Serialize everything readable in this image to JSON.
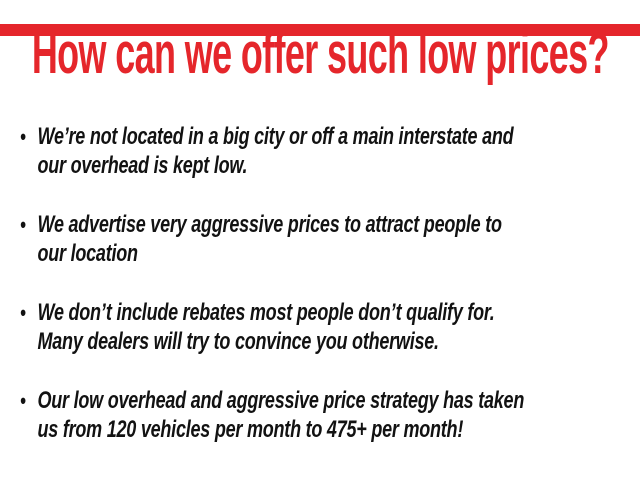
{
  "slide": {
    "title": "How can we offer such low prices?",
    "accent_color": "#e5262b",
    "text_color": "#121212",
    "bullet_char": "•",
    "bullets": [
      {
        "lines": [
          "We’re not located in a big city or off a main interstate and",
          "our overhead is kept low."
        ]
      },
      {
        "lines": [
          "We advertise very aggressive prices to attract people to",
          "our location"
        ]
      },
      {
        "lines": [
          "We don’t include rebates most people don’t qualify for.",
          "Many dealers will try to convince you otherwise."
        ]
      },
      {
        "lines": [
          "Our low overhead and aggressive price strategy has taken",
          "us from 120 vehicles per month to 475+ per month!"
        ]
      }
    ]
  }
}
